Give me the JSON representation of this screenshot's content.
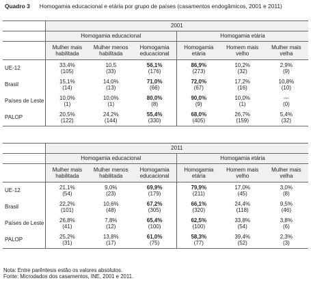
{
  "title": {
    "label": "Quadro 3",
    "text": "Homogamia educacional e etária por grupo de países (casamentos endogâmicos, 2001 e 2011)"
  },
  "group_headers": {
    "educ": "Homogamia educacional",
    "age": "Homogamia etária"
  },
  "col_headers": {
    "educ": [
      "Mulher mais habilitada",
      "Mulher menos habilitada",
      "Homogamia educacional"
    ],
    "age": [
      "Homogamia etária",
      "Homem mais velho",
      "Mulher mais velha"
    ]
  },
  "tables": [
    {
      "year": "2001",
      "rows": [
        {
          "label": "UE-12",
          "cells": [
            [
              "33,4%",
              "(105)"
            ],
            [
              "10,5",
              "(33)"
            ],
            [
              "56,1%",
              "(176)"
            ],
            [
              "86,9%",
              "(273)"
            ],
            [
              "10,2%",
              "(32)"
            ],
            [
              "2,9%",
              "(9)"
            ]
          ]
        },
        {
          "label": "Brasil",
          "cells": [
            [
              "15,1%",
              "(14)"
            ],
            [
              "14,0%",
              "(13)"
            ],
            [
              "71,0%",
              "(66)"
            ],
            [
              "72,0%",
              "(67)"
            ],
            [
              "17,2%",
              "(16)"
            ],
            [
              "10,8%",
              "(10)"
            ]
          ]
        },
        {
          "label": "Países de Leste",
          "cells": [
            [
              "10,0%",
              "(1)"
            ],
            [
              "10,0%",
              "(1)"
            ],
            [
              "80,0%",
              "(8)"
            ],
            [
              "90,0%",
              "(9)"
            ],
            [
              "10,0%",
              "(1)"
            ],
            [
              "---",
              "(0)"
            ]
          ]
        },
        {
          "label": "PALOP",
          "cells": [
            [
              "20,5%",
              "(122)"
            ],
            [
              "24,2%",
              "(144)"
            ],
            [
              "55,4%",
              "(330)"
            ],
            [
              "68,0%",
              "(405)"
            ],
            [
              "26,7%",
              "(159)"
            ],
            [
              "5,4%",
              "(32)"
            ]
          ]
        }
      ]
    },
    {
      "year": "2011",
      "rows": [
        {
          "label": "UE-12",
          "cells": [
            [
              "21,1%",
              "(54)"
            ],
            [
              "9,0%",
              "(23)"
            ],
            [
              "69,9%",
              "(179)"
            ],
            [
              "79,9%",
              "(211)"
            ],
            [
              "17,0%",
              "(45)"
            ],
            [
              "3,0%",
              "(8)"
            ]
          ]
        },
        {
          "label": "Brasil",
          "cells": [
            [
              "22,2%",
              "(101)"
            ],
            [
              "10,6%",
              "(48)"
            ],
            [
              "67,2%",
              "(305)"
            ],
            [
              "66,1%",
              "(320)"
            ],
            [
              "24,4%",
              "(118)"
            ],
            [
              "9,5%",
              "(46)"
            ]
          ]
        },
        {
          "label": "Países de Leste",
          "cells": [
            [
              "26,8%",
              "(41)"
            ],
            [
              "7,8%",
              "(12)"
            ],
            [
              "65,4%",
              "(100)"
            ],
            [
              "62,5%",
              "(100)"
            ],
            [
              "33,8%",
              "(54)"
            ],
            [
              "3,8%",
              "(6)"
            ]
          ]
        },
        {
          "label": "PALOP",
          "cells": [
            [
              "25,2%",
              "(31)"
            ],
            [
              "13,8%",
              "(17)"
            ],
            [
              "61,0%",
              "(75)"
            ],
            [
              "58,3%",
              "(77)"
            ],
            [
              "39,4%",
              "(52)"
            ],
            [
              "2,3%",
              "(3)"
            ]
          ]
        }
      ]
    }
  ],
  "notes": [
    "Nota: Entre parêntesis estão os valores absolutos.",
    "Fonte: Microdados dos casamentos, INE, 2001 e 2011."
  ]
}
